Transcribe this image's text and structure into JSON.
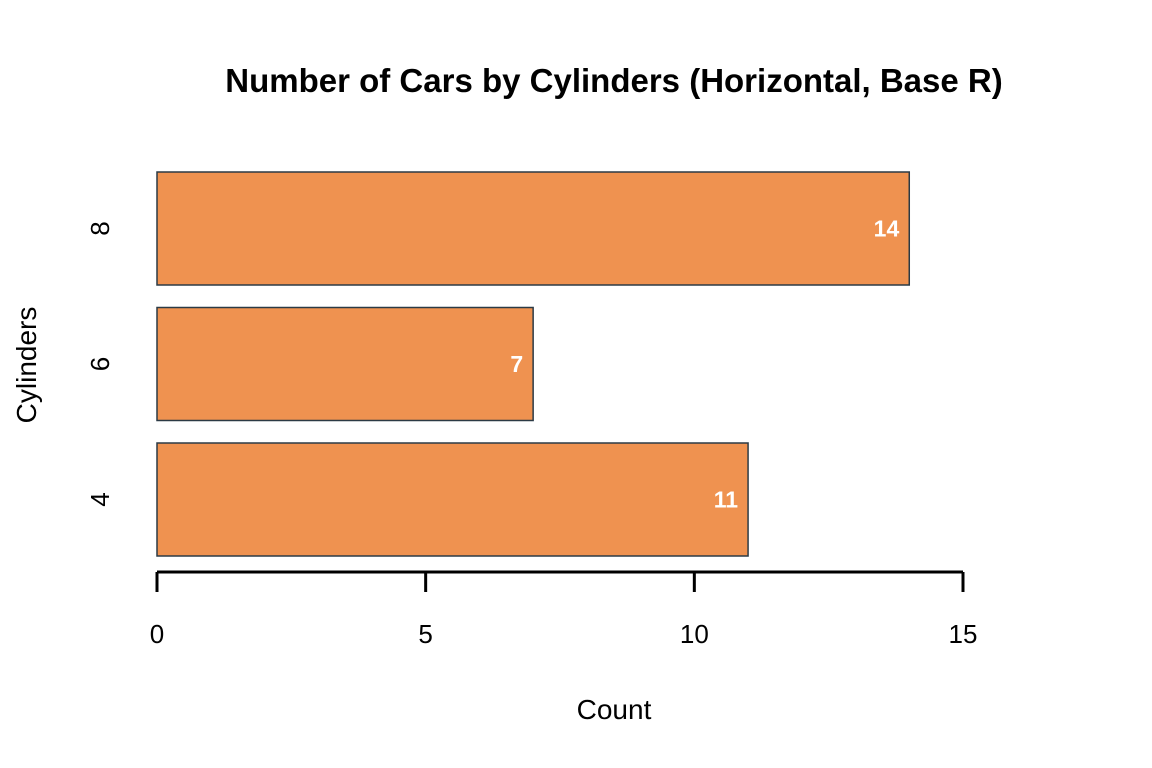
{
  "chart_data": {
    "type": "bar",
    "orientation": "horizontal",
    "title": "Number of Cars by Cylinders (Horizontal, Base R)",
    "xlabel": "Count",
    "ylabel": "Cylinders",
    "categories": [
      "4",
      "6",
      "8"
    ],
    "values": [
      11,
      7,
      14
    ],
    "data_labels": [
      "11",
      "7",
      "14"
    ],
    "xlim": [
      0,
      15
    ],
    "x_ticks": [
      0,
      5,
      10,
      15
    ],
    "x_tick_labels": [
      "0",
      "5",
      "10",
      "15"
    ],
    "grid": false,
    "legend": "none",
    "colors": {
      "bar_fill": "#EF9250",
      "bar_stroke": "#2B3A45",
      "label": "#FFFFFF"
    }
  }
}
